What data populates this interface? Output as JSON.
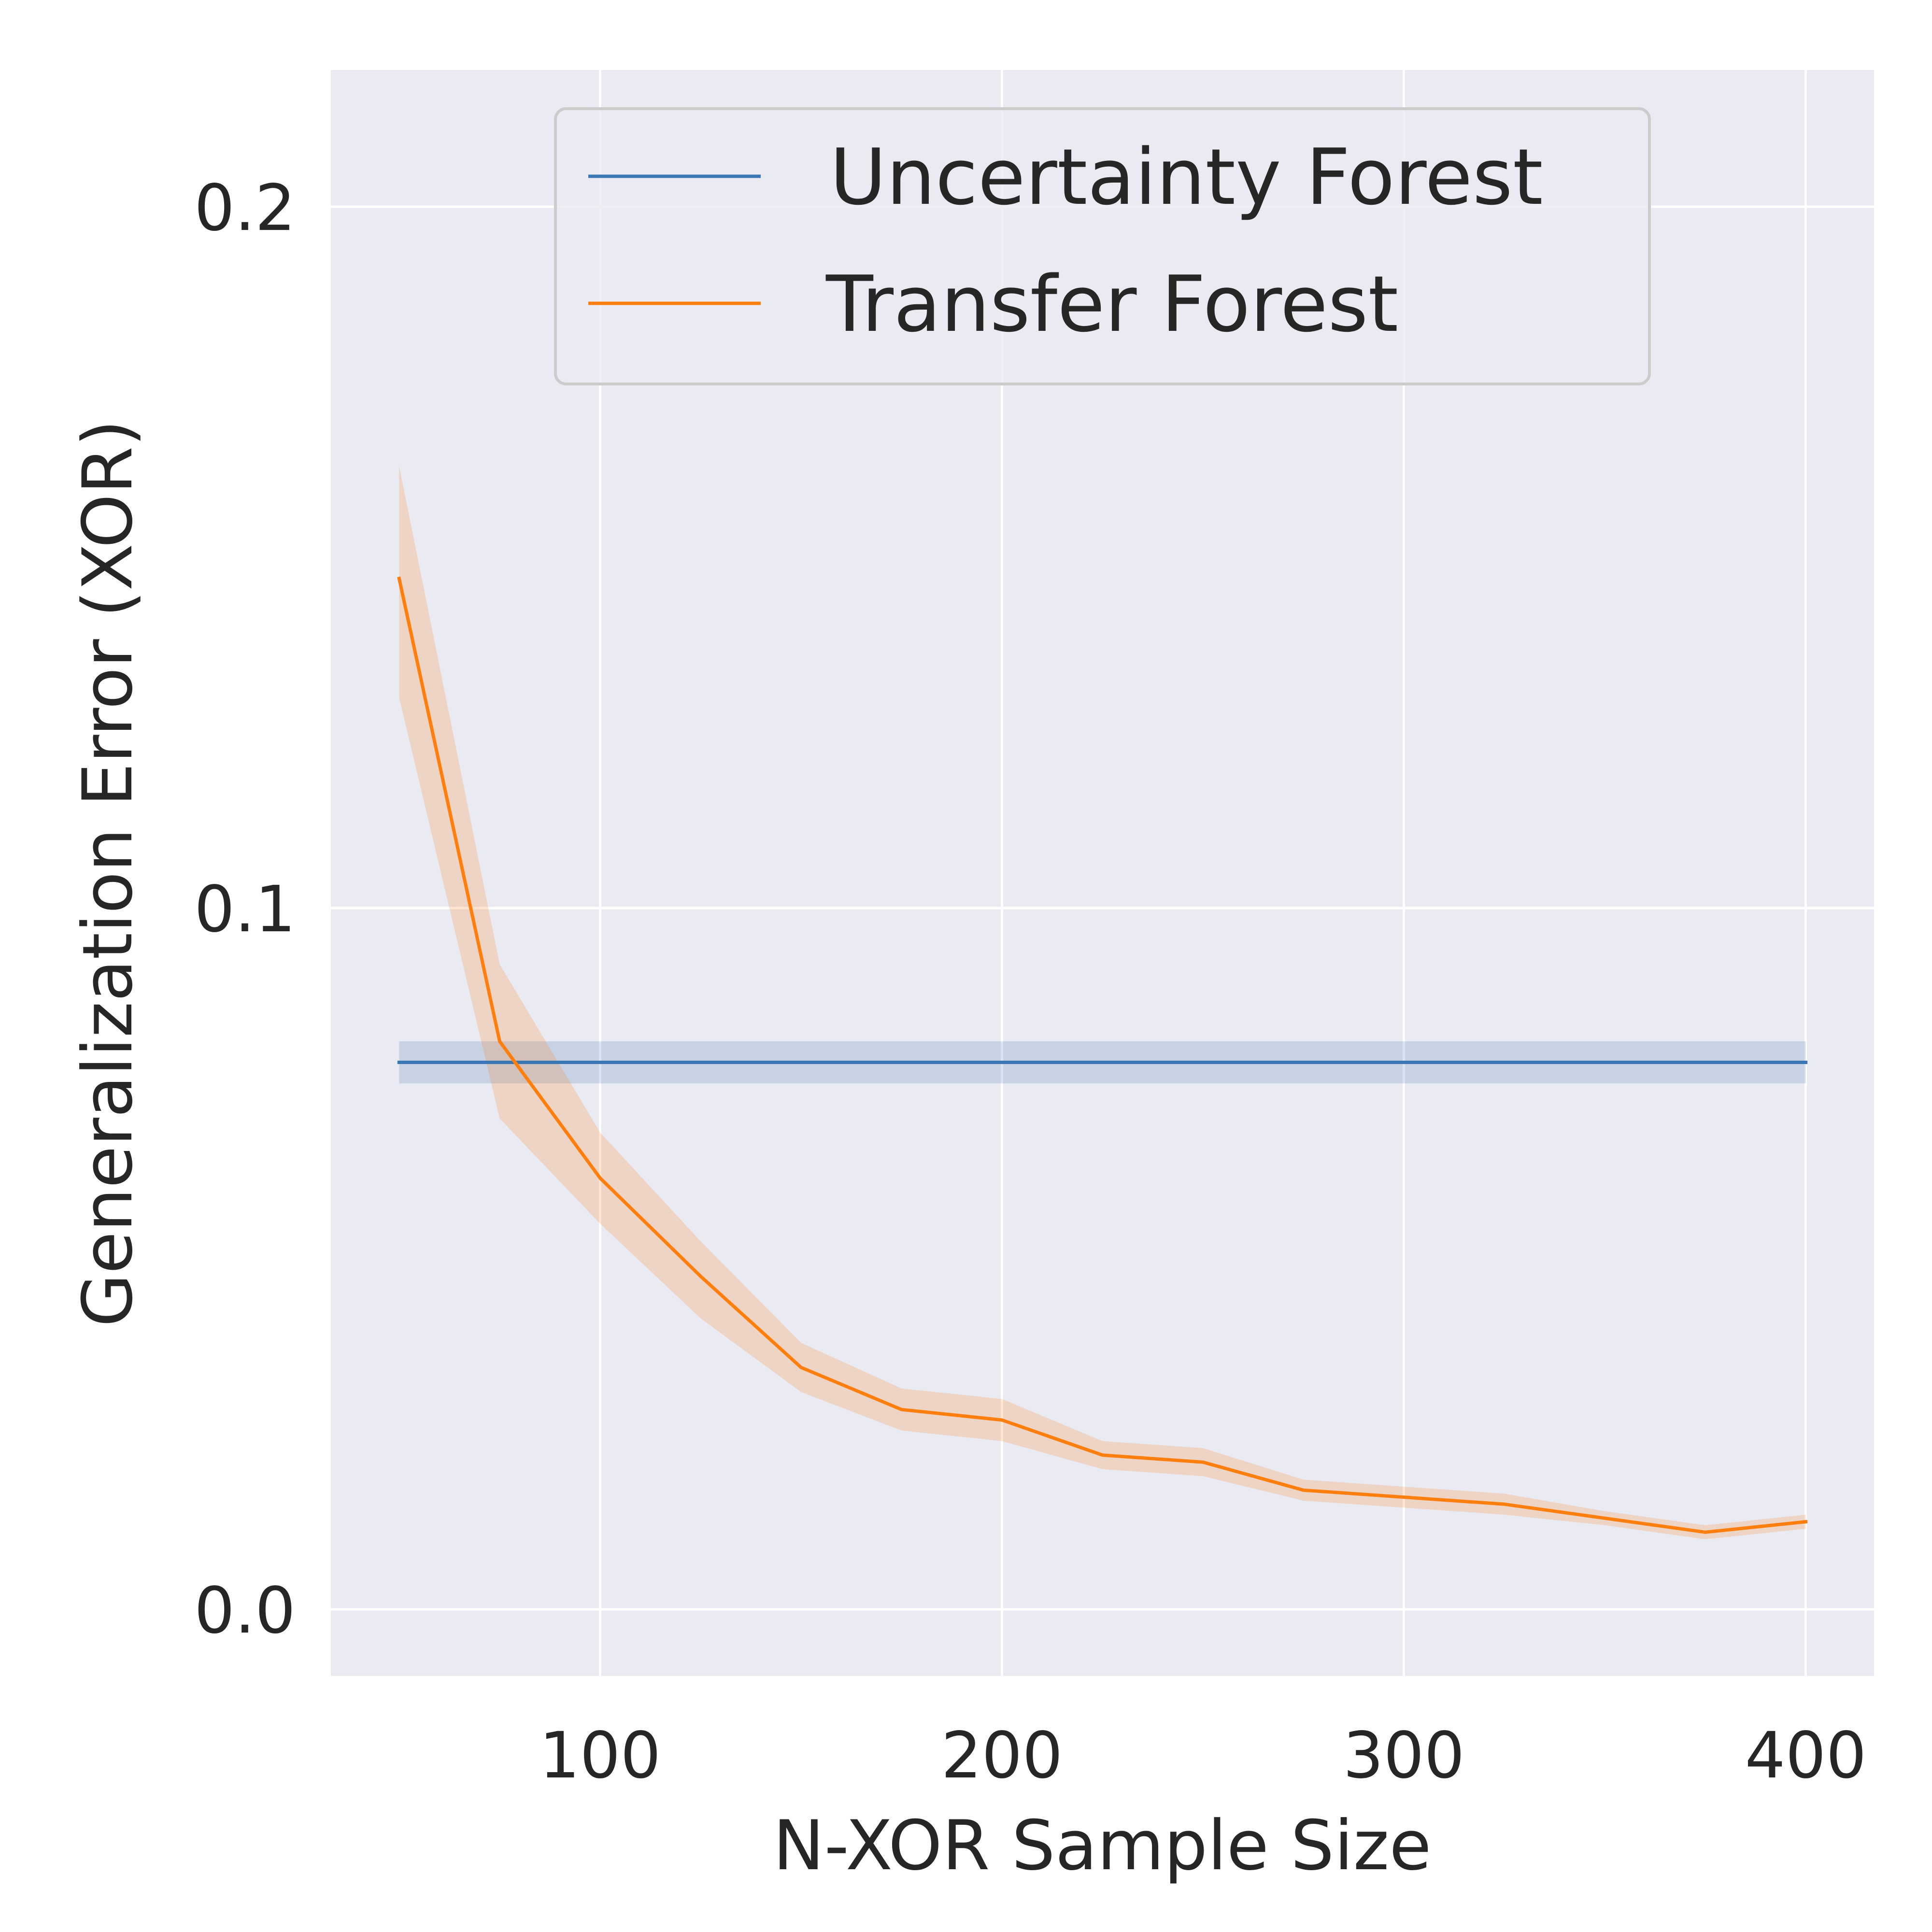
{
  "chart_data": {
    "type": "line",
    "title": "",
    "xlabel": "N-XOR Sample Size",
    "ylabel": "Generalization Error (XOR)",
    "xlim": [
      33,
      417
    ],
    "ylim": [
      -0.0095,
      0.2195
    ],
    "xticks": [
      100,
      200,
      300,
      400
    ],
    "xtick_labels": [
      "100",
      "200",
      "300",
      "400"
    ],
    "yticks": [
      0.0,
      0.1,
      0.2
    ],
    "ytick_labels": [
      "0.0",
      "0.1",
      "0.2"
    ],
    "grid": true,
    "legend_position": "top-center",
    "background_color": "#eaeaf2",
    "series": [
      {
        "name": "Uncertainty Forest",
        "color": "#3a78b5",
        "x": [
          50,
          400
        ],
        "y": [
          0.078,
          0.078
        ],
        "lower": [
          0.075,
          0.075
        ],
        "upper": [
          0.081,
          0.081
        ]
      },
      {
        "name": "Transfer Forest",
        "color": "#ff7f0e",
        "x": [
          50,
          75,
          100,
          125,
          150,
          175,
          200,
          225,
          250,
          275,
          300,
          325,
          350,
          375,
          400
        ],
        "y": [
          0.147,
          0.081,
          0.0615,
          0.0475,
          0.0345,
          0.0285,
          0.027,
          0.022,
          0.021,
          0.017,
          0.016,
          0.015,
          0.013,
          0.011,
          0.0125
        ],
        "lower": [
          0.13,
          0.07,
          0.055,
          0.0415,
          0.031,
          0.0255,
          0.024,
          0.02,
          0.019,
          0.0155,
          0.0145,
          0.0135,
          0.012,
          0.01,
          0.0115
        ],
        "upper": [
          0.163,
          0.092,
          0.068,
          0.0525,
          0.038,
          0.0315,
          0.03,
          0.024,
          0.023,
          0.0185,
          0.0175,
          0.0165,
          0.014,
          0.012,
          0.0135
        ]
      }
    ]
  }
}
